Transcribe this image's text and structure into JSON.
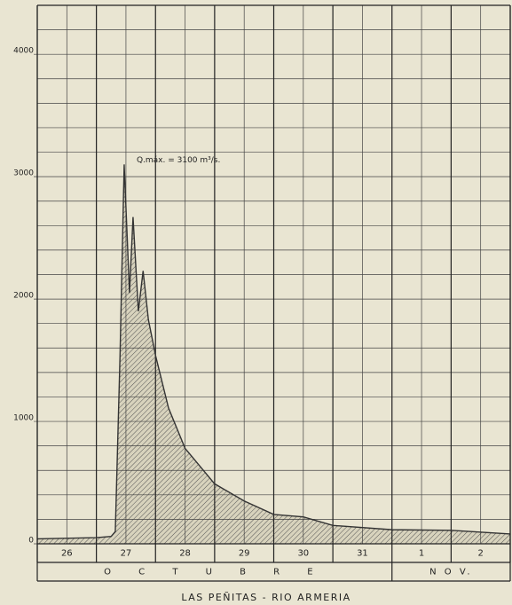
{
  "chart_data": {
    "type": "area",
    "title": "LAS PEÑITAS - RIO ARMERIA",
    "annotation": "Q.máx. = 3100 m³/s.",
    "categories": [
      "26",
      "27",
      "28",
      "29",
      "30",
      "31",
      "1",
      "2"
    ],
    "months": [
      "O C T U B R E",
      "N O V."
    ],
    "month_starts": [
      0,
      6
    ],
    "x": [
      0,
      1.0,
      1.25,
      1.32,
      1.4,
      1.47,
      1.56,
      1.62,
      1.71,
      1.79,
      1.88,
      2.0,
      2.22,
      2.5,
      3.0,
      3.5,
      4.0,
      4.5,
      5.0,
      6.0,
      7.0,
      8.0
    ],
    "values": [
      40,
      50,
      60,
      100,
      1540,
      3100,
      2050,
      2670,
      1900,
      2230,
      1830,
      1540,
      1110,
      780,
      490,
      350,
      240,
      220,
      150,
      115,
      110,
      80
    ],
    "xlim": [
      0,
      8
    ],
    "xticks": [
      0,
      1,
      2,
      3,
      4,
      5,
      6,
      7,
      8
    ],
    "minor_xticks": [
      0.5,
      1.5,
      2.5,
      3.5,
      4.5,
      5.5,
      6.5,
      7.5
    ],
    "ylim": [
      0,
      4400
    ],
    "yticks": [
      0,
      1000,
      2000,
      3000,
      4000
    ],
    "minor_yticks": [
      200,
      400,
      600,
      800,
      1200,
      1400,
      1600,
      1800,
      2200,
      2400,
      2600,
      2800,
      3200,
      3400,
      3600,
      3800,
      4200,
      4400
    ],
    "color": "#333333",
    "grid": true
  }
}
